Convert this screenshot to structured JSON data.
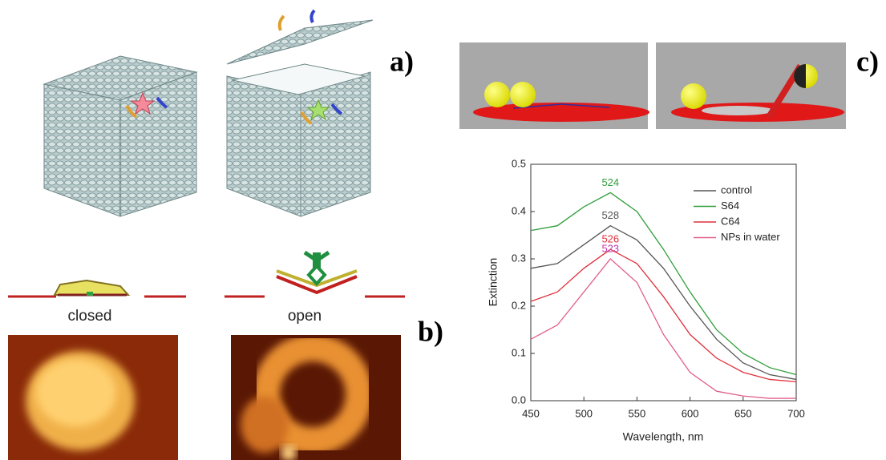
{
  "panel_labels": [
    "a)",
    "b)",
    "c)"
  ],
  "captions": {
    "closed": "closed",
    "open": "open"
  },
  "chart_data": {
    "type": "line",
    "xlabel": "Wavelength, nm",
    "ylabel": "Extinction",
    "x": [
      450,
      475,
      500,
      525,
      550,
      575,
      600,
      625,
      650,
      675,
      700
    ],
    "xlim": [
      450,
      700
    ],
    "xticks": [
      450,
      500,
      550,
      600,
      650,
      700
    ],
    "ylim": [
      0,
      0.5
    ],
    "yticks": [
      {
        "value": 0,
        "label": "0.0"
      },
      0.1,
      0.2,
      0.3,
      0.4,
      0.5
    ],
    "legend": "upper right",
    "series": [
      {
        "name": "control",
        "color": "#555555",
        "peak_label": "528",
        "values": [
          0.28,
          0.29,
          0.33,
          0.37,
          0.34,
          0.28,
          0.2,
          0.13,
          0.08,
          0.055,
          0.045
        ]
      },
      {
        "name": "S64",
        "color": "#2e9e3a",
        "peak_label": "524",
        "values": [
          0.36,
          0.37,
          0.41,
          0.44,
          0.4,
          0.32,
          0.23,
          0.15,
          0.1,
          0.07,
          0.055
        ]
      },
      {
        "name": "C64",
        "color": "#e0303a",
        "peak_label": "526",
        "values": [
          0.21,
          0.23,
          0.28,
          0.32,
          0.29,
          0.22,
          0.14,
          0.09,
          0.06,
          0.045,
          0.04
        ]
      },
      {
        "name": "NPs in water",
        "color": "#e0608a",
        "label_color": "#c03ab0",
        "peak_label": "523",
        "values": [
          0.13,
          0.16,
          0.23,
          0.3,
          0.25,
          0.14,
          0.06,
          0.02,
          0.01,
          0.005,
          0.005
        ]
      }
    ]
  }
}
